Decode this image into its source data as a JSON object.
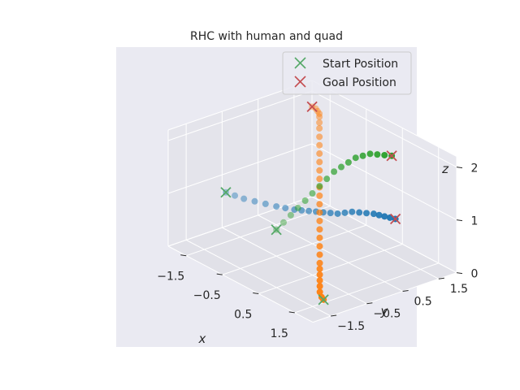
{
  "chart_data": {
    "type": "scatter",
    "projection": "3d",
    "title": "RHC with human and quad",
    "xlabel": "x",
    "ylabel": "y",
    "zlabel": "z",
    "xlim": [
      -2,
      2
    ],
    "ylim": [
      -2,
      2
    ],
    "zlim": [
      0,
      2.2
    ],
    "xticks": [
      "−1.5",
      "−0.5",
      "0.5",
      "1.5"
    ],
    "yticks": [
      "−1.5",
      "−0.5",
      "0.5",
      "1.5"
    ],
    "zticks": [
      "0",
      "1",
      "2"
    ],
    "grid": true,
    "legend_position": "top-right",
    "legend": [
      {
        "label": "Start Position",
        "marker": "x",
        "color": "#55a868"
      },
      {
        "label": "Goal Position",
        "marker": "x",
        "color": "#c44e52"
      }
    ],
    "series": [
      {
        "color": "#1f77b4",
        "x": [
          -1.4,
          -1.2,
          -1.0,
          -0.8,
          -0.6,
          -0.4,
          -0.25,
          -0.1,
          0.0,
          0.1,
          0.2,
          0.3,
          0.4,
          0.5,
          0.55,
          0.6,
          0.7,
          0.8,
          0.9,
          1.0,
          1.1,
          1.2,
          1.3
        ],
        "y": [
          -1.0,
          -0.95,
          -0.9,
          -0.8,
          -0.7,
          -0.6,
          -0.5,
          -0.4,
          -0.3,
          -0.2,
          -0.1,
          0.0,
          0.1,
          0.2,
          0.35,
          0.5,
          0.6,
          0.7,
          0.8,
          0.85,
          0.9,
          0.95,
          1.0
        ],
        "z": [
          1.0,
          1.0,
          1.0,
          1.0,
          1.0,
          1.0,
          1.0,
          1.0,
          1.0,
          1.0,
          1.0,
          1.0,
          1.0,
          1.0,
          1.0,
          1.0,
          1.0,
          1.0,
          1.0,
          1.0,
          1.0,
          1.0,
          1.0
        ]
      },
      {
        "color": "#ff7f0e",
        "x": [
          -1.5,
          -1.4,
          -1.3,
          -1.2,
          -1.1,
          -1.0,
          -0.9,
          -0.8,
          -0.7,
          -0.6,
          -0.5,
          -0.4,
          -0.3,
          -0.2,
          -0.1,
          0.0,
          0.1,
          0.2,
          0.3,
          0.4,
          0.5,
          0.6,
          0.7,
          0.8,
          0.9,
          1.0,
          1.1,
          1.2,
          1.3,
          1.4
        ],
        "y": [
          1.5,
          1.5,
          1.45,
          1.4,
          1.3,
          1.2,
          1.1,
          1.0,
          0.9,
          0.8,
          0.7,
          0.6,
          0.5,
          0.4,
          0.3,
          0.2,
          0.1,
          0.0,
          -0.1,
          -0.2,
          -0.3,
          -0.4,
          -0.5,
          -0.6,
          -0.7,
          -0.8,
          -0.9,
          -1.0,
          -1.05,
          -1.1
        ],
        "z": [
          2.0,
          2.0,
          2.0,
          2.0,
          2.0,
          1.95,
          1.9,
          1.8,
          1.7,
          1.6,
          1.5,
          1.4,
          1.3,
          1.2,
          1.1,
          1.0,
          0.9,
          0.8,
          0.7,
          0.6,
          0.5,
          0.4,
          0.3,
          0.25,
          0.2,
          0.15,
          0.1,
          0.05,
          0.0,
          0.0
        ]
      },
      {
        "color": "#2ca02c",
        "x": [
          -0.5,
          -0.4,
          -0.3,
          -0.2,
          -0.1,
          0.0,
          0.1,
          0.2,
          0.3,
          0.4,
          0.5,
          0.6,
          0.7,
          0.8,
          0.9,
          1.0,
          1.1
        ],
        "y": [
          -0.5,
          -0.4,
          -0.3,
          -0.2,
          -0.1,
          0.0,
          0.1,
          0.2,
          0.3,
          0.4,
          0.5,
          0.6,
          0.7,
          0.8,
          0.9,
          1.0,
          1.1
        ],
        "z": [
          0.5,
          0.65,
          0.8,
          0.95,
          1.1,
          1.25,
          1.4,
          1.55,
          1.7,
          1.8,
          1.9,
          2.0,
          2.05,
          2.1,
          2.1,
          2.1,
          2.1
        ]
      }
    ],
    "start_positions": {
      "x": [
        -1.4,
        -0.5,
        1.4
      ],
      "y": [
        -1.0,
        -0.5,
        -1.1
      ],
      "z": [
        1.0,
        0.5,
        0.0
      ]
    },
    "goal_positions": {
      "x": [
        -1.5,
        1.1,
        1.3
      ],
      "y": [
        1.5,
        1.1,
        1.0
      ],
      "z": [
        2.0,
        2.1,
        1.0
      ]
    }
  }
}
